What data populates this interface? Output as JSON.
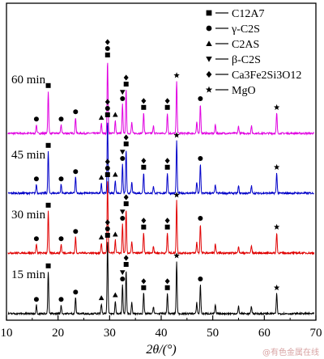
{
  "chart_data": {
    "type": "line",
    "xlabel": "2θ/(°)",
    "ylabel": "",
    "xlim": [
      10,
      70
    ],
    "xticks": [
      10,
      20,
      30,
      40,
      50,
      60,
      70
    ],
    "grid": false,
    "legend_position": "top-right",
    "legend": [
      {
        "symbol": "square",
        "label": "C12A7"
      },
      {
        "symbol": "circle",
        "label": "γ-C2S"
      },
      {
        "symbol": "triangle-up",
        "label": "C2AS"
      },
      {
        "symbol": "triangle-down",
        "label": "β-C2S"
      },
      {
        "symbol": "diamond",
        "label": "Ca3Fe2Si3O12"
      },
      {
        "symbol": "star",
        "label": "MgO"
      }
    ],
    "series": [
      {
        "name": "60 min",
        "color": "#e000e0"
      },
      {
        "name": "45 min",
        "color": "#0000c8"
      },
      {
        "name": "30 min",
        "color": "#e00000"
      },
      {
        "name": "15 min",
        "color": "#000000"
      }
    ],
    "peaks": [
      {
        "x": 15.8,
        "h": 0.12,
        "markers": [
          "circle"
        ]
      },
      {
        "x": 18.1,
        "h": 0.58,
        "markers": [
          "square"
        ]
      },
      {
        "x": 20.6,
        "h": 0.12,
        "markers": [
          "circle"
        ]
      },
      {
        "x": 23.4,
        "h": 0.22,
        "markers": [
          "circle"
        ]
      },
      {
        "x": 28.4,
        "h": 0.14,
        "markers": [
          "triangle-up"
        ]
      },
      {
        "x": 29.6,
        "h": 1.0,
        "markers": [
          "diamond",
          "circle",
          "square"
        ]
      },
      {
        "x": 31.1,
        "h": 0.18,
        "markers": [
          "triangle-up"
        ]
      },
      {
        "x": 32.5,
        "h": 0.4,
        "markers": [
          "triangle-down",
          "circle"
        ]
      },
      {
        "x": 33.2,
        "h": 0.6,
        "markers": [
          "diamond",
          "square"
        ]
      },
      {
        "x": 34.3,
        "h": 0.15,
        "markers": []
      },
      {
        "x": 36.6,
        "h": 0.28,
        "markers": [
          "diamond",
          "square"
        ]
      },
      {
        "x": 38.5,
        "h": 0.1,
        "markers": []
      },
      {
        "x": 41.2,
        "h": 0.28,
        "markers": [
          "diamond",
          "square"
        ]
      },
      {
        "x": 43.0,
        "h": 0.72,
        "markers": [
          "star"
        ]
      },
      {
        "x": 46.9,
        "h": 0.15,
        "markers": []
      },
      {
        "x": 47.6,
        "h": 0.4,
        "markers": [
          "circle"
        ]
      },
      {
        "x": 50.5,
        "h": 0.12,
        "markers": []
      },
      {
        "x": 55.0,
        "h": 0.1,
        "markers": []
      },
      {
        "x": 57.5,
        "h": 0.1,
        "markers": []
      },
      {
        "x": 62.4,
        "h": 0.28,
        "markers": [
          "star"
        ]
      }
    ]
  },
  "watermark": "@有色金属在线"
}
